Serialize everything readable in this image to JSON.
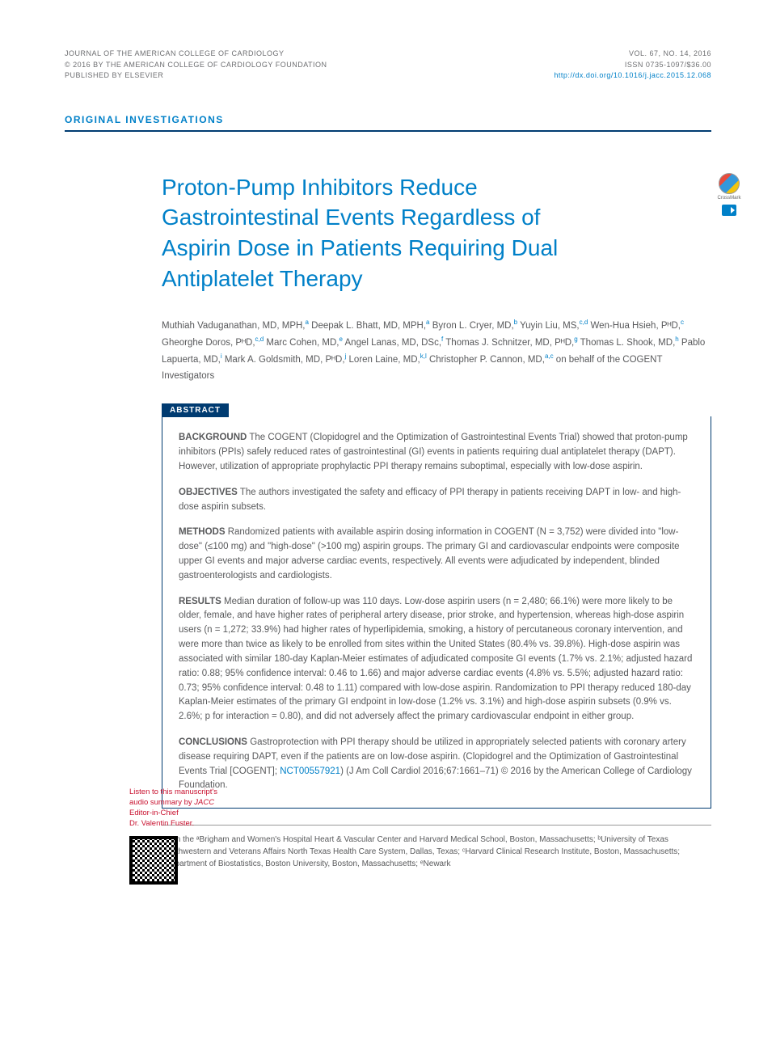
{
  "header": {
    "journal_line1": "JOURNAL OF THE AMERICAN COLLEGE OF CARDIOLOGY",
    "journal_line2": "© 2016 BY THE AMERICAN COLLEGE OF CARDIOLOGY FOUNDATION",
    "journal_line3": "PUBLISHED BY ELSEVIER",
    "vol_issue": "VOL. 67, NO. 14, 2016",
    "issn": "ISSN 0735-1097/$36.00",
    "doi": "http://dx.doi.org/10.1016/j.jacc.2015.12.068"
  },
  "section_label": "ORIGINAL INVESTIGATIONS",
  "title": "Proton-Pump Inhibitors Reduce Gastrointestinal Events Regardless of Aspirin Dose in Patients Requiring Dual Antiplatelet Therapy",
  "crossmark_label": "CrossMark",
  "authors_html": "Muthiah Vaduganathan, MD, MPH,<sup>a</sup> Deepak L. Bhatt, MD, MPH,<sup>a</sup> Byron L. Cryer, MD,<sup>b</sup> Yuyin Liu, MS,<sup>c,d</sup> Wen-Hua Hsieh, PᴴD,<sup>c</sup> Gheorghe Doros, PᴴD,<sup>c,d</sup> Marc Cohen, MD,<sup>e</sup> Angel Lanas, MD, DSᴄ,<sup>f</sup> Thomas J. Schnitzer, MD, PᴴD,<sup>g</sup> Thomas L. Shook, MD,<sup>h</sup> Pablo Lapuerta, MD,<sup>i</sup> Mark A. Goldsmith, MD, PᴴD,<sup>j</sup> Loren Laine, MD,<sup>k,l</sup> Christopher P. Cannon, MD,<sup>a,c</sup> on behalf of the COGENT Investigators",
  "abstract_label": "ABSTRACT",
  "abstract": {
    "background": {
      "heading": "BACKGROUND",
      "text": "The COGENT (Clopidogrel and the Optimization of Gastrointestinal Events Trial) showed that proton-pump inhibitors (PPIs) safely reduced rates of gastrointestinal (GI) events in patients requiring dual antiplatelet therapy (DAPT). However, utilization of appropriate prophylactic PPI therapy remains suboptimal, especially with low-dose aspirin."
    },
    "objectives": {
      "heading": "OBJECTIVES",
      "text": "The authors investigated the safety and efficacy of PPI therapy in patients receiving DAPT in low- and high-dose aspirin subsets."
    },
    "methods": {
      "heading": "METHODS",
      "text": "Randomized patients with available aspirin dosing information in COGENT (N = 3,752) were divided into \"low-dose\" (≤100 mg) and \"high-dose\" (>100 mg) aspirin groups. The primary GI and cardiovascular endpoints were composite upper GI events and major adverse cardiac events, respectively. All events were adjudicated by independent, blinded gastroenterologists and cardiologists."
    },
    "results": {
      "heading": "RESULTS",
      "text": "Median duration of follow-up was 110 days. Low-dose aspirin users (n = 2,480; 66.1%) were more likely to be older, female, and have higher rates of peripheral artery disease, prior stroke, and hypertension, whereas high-dose aspirin users (n = 1,272; 33.9%) had higher rates of hyperlipidemia, smoking, a history of percutaneous coronary intervention, and were more than twice as likely to be enrolled from sites within the United States (80.4% vs. 39.8%). High-dose aspirin was associated with similar 180-day Kaplan-Meier estimates of adjudicated composite GI events (1.7% vs. 2.1%; adjusted hazard ratio: 0.88; 95% confidence interval: 0.46 to 1.66) and major adverse cardiac events (4.8% vs. 5.5%; adjusted hazard ratio: 0.73; 95% confidence interval: 0.48 to 1.11) compared with low-dose aspirin. Randomization to PPI therapy reduced 180-day Kaplan-Meier estimates of the primary GI endpoint in low-dose (1.2% vs. 3.1%) and high-dose aspirin subsets (0.9% vs. 2.6%; p for interaction = 0.80), and did not adversely affect the primary cardiovascular endpoint in either group."
    },
    "conclusions": {
      "heading": "CONCLUSIONS",
      "text_before_link": "Gastroprotection with PPI therapy should be utilized in appropriately selected patients with coronary artery disease requiring DAPT, even if the patients are on low-dose aspirin. (Clopidogrel and the Optimization of Gastrointestinal Events Trial [COGENT]; ",
      "trial_id": "NCT00557921",
      "text_after_link": ")  (J Am Coll Cardiol 2016;67:1661–71) © 2016 by the American College of Cardiology Foundation."
    }
  },
  "sidebar": {
    "line1": "Listen to this manuscript's audio summary by",
    "line2": "JACC",
    "line3": " Editor-in-Chief",
    "line4": "Dr. Valentin Fuster."
  },
  "affiliations": "From the ᵃBrigham and Women's Hospital Heart & Vascular Center and Harvard Medical School, Boston, Massachusetts; ᵇUniversity of Texas Southwestern and Veterans Affairs North Texas Health Care System, Dallas, Texas; ᶜHarvard Clinical Research Institute, Boston, Massachusetts; ᵈDepartment of Biostatistics, Boston University, Boston, Massachusetts; ᵉNewark"
}
